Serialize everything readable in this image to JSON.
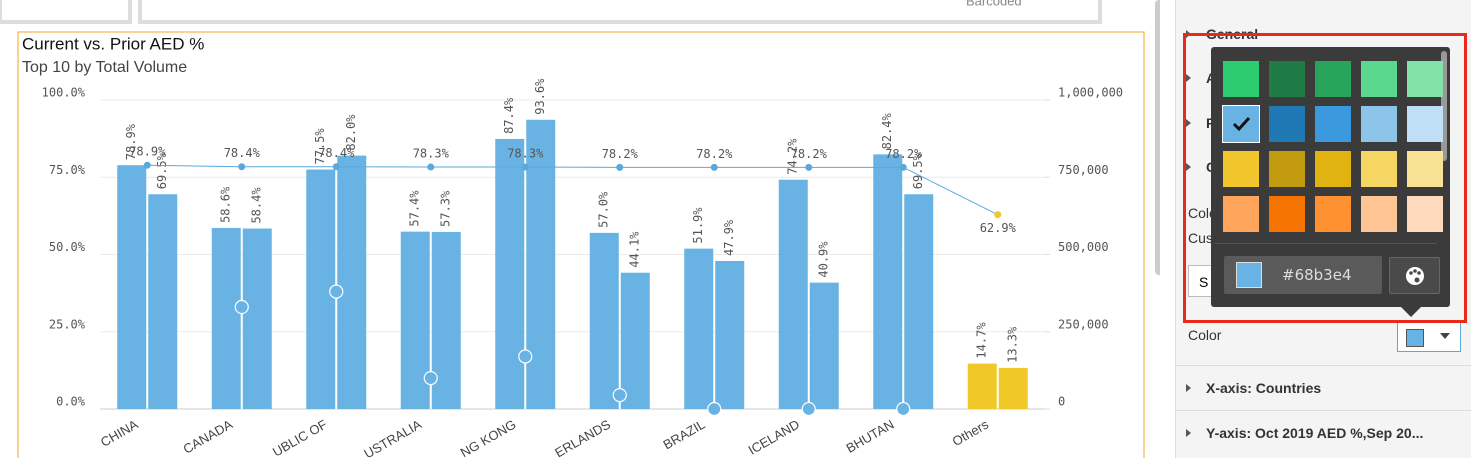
{
  "chart_data": {
    "type": "combo",
    "title": "Current vs. Prior AED %",
    "subtitle": "Top 10 by Total Volume",
    "categories": [
      "CHINA",
      "CANADA",
      "UBLIC OF",
      "USTRALIA",
      "NG KONG",
      "ERLANDS",
      "BRAZIL",
      "ICELAND",
      "BHUTAN",
      "Others"
    ],
    "series": [
      {
        "type": "bar",
        "color": "#68b3e4",
        "colors": [
          "#68b3e4",
          "#68b3e4",
          "#68b3e4",
          "#68b3e4",
          "#68b3e4",
          "#68b3e4",
          "#68b3e4",
          "#68b3e4",
          "#68b3e4",
          "#f0c929"
        ],
        "values": [
          78.9,
          58.6,
          77.5,
          57.4,
          87.4,
          57.0,
          51.9,
          74.2,
          82.4,
          14.7
        ],
        "value_labels": [
          "78.9%",
          "58.6%",
          "77.5%",
          "57.4%",
          "87.4%",
          "57.0%",
          "51.9%",
          "74.2%",
          "82.4%",
          "14.7%"
        ]
      },
      {
        "type": "bar",
        "color": "#68b3e4",
        "colors": [
          "#68b3e4",
          "#68b3e4",
          "#68b3e4",
          "#68b3e4",
          "#68b3e4",
          "#68b3e4",
          "#68b3e4",
          "#68b3e4",
          "#68b3e4",
          "#f0c929"
        ],
        "values": [
          69.5,
          58.4,
          82.0,
          57.3,
          93.6,
          44.1,
          47.9,
          40.9,
          69.5,
          13.3
        ],
        "value_labels": [
          "69.5%",
          "58.4%",
          "82.0%",
          "57.3%",
          "93.6%",
          "44.1%",
          "47.9%",
          "40.9%",
          "69.5%",
          "13.3%"
        ]
      },
      {
        "type": "line",
        "color": "#5aa9db",
        "colors": [
          "#5aa9db",
          "#5aa9db",
          "#5aa9db",
          "#5aa9db",
          "#5aa9db",
          "#5aa9db",
          "#5aa9db",
          "#5aa9db",
          "#5aa9db",
          "#f0c929"
        ],
        "values": [
          78.9,
          78.4,
          78.4,
          78.3,
          78.3,
          78.2,
          78.2,
          78.2,
          78.2,
          62.9
        ],
        "value_labels": [
          "78.9%",
          "78.4%",
          "78.4%",
          "78.3%",
          "78.3%",
          "78.2%",
          "78.2%",
          "78.2%",
          "78.2%",
          "62.9%"
        ]
      },
      {
        "type": "scatter",
        "axis": "y2",
        "color": "#68b3e4",
        "values": [
          null,
          330000,
          380000,
          100000,
          170000,
          45000,
          0,
          0,
          0,
          null
        ]
      }
    ],
    "ylim": [
      0,
      100
    ],
    "yticks": [
      {
        "value": 0,
        "label": "0.0%"
      },
      {
        "value": 25,
        "label": "25.0%"
      },
      {
        "value": 50,
        "label": "50.0%"
      },
      {
        "value": 75,
        "label": "75.0%"
      },
      {
        "value": 100,
        "label": "100.0%"
      }
    ],
    "y2lim": [
      0,
      1000000
    ],
    "y2ticks": [
      0,
      {
        "value": 250000,
        "label": "250,000"
      },
      {
        "value": 500000,
        "label": "500,000"
      },
      {
        "value": 750000,
        "label": "750,000"
      },
      {
        "value": 1000000,
        "label": "1,000,000"
      }
    ],
    "grid": true
  },
  "header": {
    "column_text": "Barcoded"
  },
  "panel": {
    "sections": [
      "General",
      "A",
      "F",
      "C"
    ],
    "color_label_short": "Colo",
    "custom_label_short": "Cus",
    "button_short": "S",
    "color_label": "Color",
    "axis_sections": [
      "X-axis: Countries",
      "Y-axis: Oct 2019 AED %,Sep 20..."
    ],
    "picker": {
      "swatches": [
        [
          "#2dcc70",
          "#1e7b45",
          "#27a55a",
          "#5ad88e",
          "#82e3a9"
        ],
        [
          "#68b3e4",
          "#1f77b4",
          "#3b9ade",
          "#8dc4ea",
          "#bedff5"
        ],
        [
          "#f1c62c",
          "#c29a0d",
          "#e0b311",
          "#f6d663",
          "#f8e394"
        ],
        [
          "#ffa55b",
          "#f57300",
          "#ff9130",
          "#ffc594",
          "#ffd9bc"
        ]
      ],
      "selected": [
        1,
        0
      ],
      "hex": "#68b3e4"
    }
  }
}
